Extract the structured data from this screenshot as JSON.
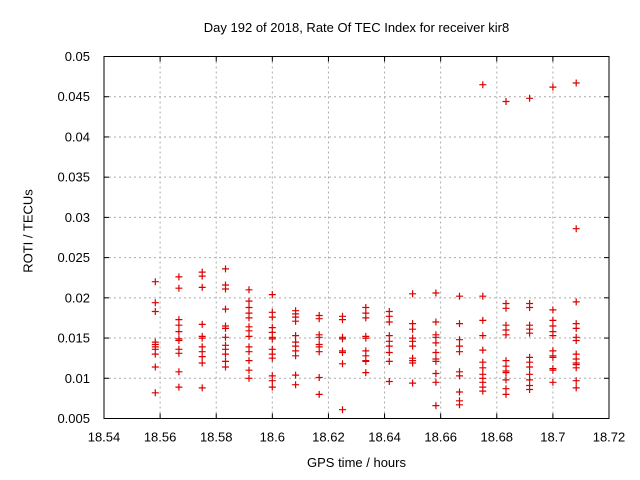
{
  "page": {
    "background": "#ffffff"
  },
  "chart_data": {
    "type": "scatter",
    "title": "Day 192 of 2018, Rate Of TEC Index for receiver kir8",
    "xlabel": "GPS time / hours",
    "ylabel": "ROTI / TECUs",
    "xlim": [
      18.54,
      18.72
    ],
    "ylim": [
      0.005,
      0.05
    ],
    "xticks": [
      18.54,
      18.56,
      18.58,
      18.6,
      18.62,
      18.64,
      18.66,
      18.68,
      18.7,
      18.72
    ],
    "xtick_labels": [
      "18.54",
      "18.56",
      "18.58",
      "18.6",
      "18.62",
      "18.64",
      "18.66",
      "18.68",
      "18.7",
      "18.72"
    ],
    "yticks": [
      0.005,
      0.01,
      0.015,
      0.02,
      0.025,
      0.03,
      0.035,
      0.04,
      0.045,
      0.05
    ],
    "ytick_labels": [
      "0.005",
      "0.01",
      "0.015",
      "0.02",
      "0.025",
      "0.03",
      "0.035",
      "0.04",
      "0.045",
      "0.05"
    ],
    "grid": true,
    "legend": false,
    "marker": "plus",
    "colors": {
      "marker": "#dd0000",
      "grid": "#aaaaaa",
      "axis": "#000000",
      "text": "#000000"
    },
    "series": [
      {
        "name": "roti",
        "points": [
          [
            18.5583,
            0.022
          ],
          [
            18.5583,
            0.0194
          ],
          [
            18.5583,
            0.0183
          ],
          [
            18.5583,
            0.0145
          ],
          [
            18.5583,
            0.0142
          ],
          [
            18.5583,
            0.0139
          ],
          [
            18.5583,
            0.0136
          ],
          [
            18.5583,
            0.013
          ],
          [
            18.5583,
            0.0114
          ],
          [
            18.5583,
            0.0082
          ],
          [
            18.5667,
            0.0226
          ],
          [
            18.5667,
            0.0212
          ],
          [
            18.5667,
            0.0173
          ],
          [
            18.5667,
            0.0166
          ],
          [
            18.5667,
            0.0158
          ],
          [
            18.5667,
            0.0149
          ],
          [
            18.5667,
            0.0147
          ],
          [
            18.5667,
            0.0136
          ],
          [
            18.5667,
            0.0131
          ],
          [
            18.5667,
            0.0108
          ],
          [
            18.5667,
            0.0089
          ],
          [
            18.575,
            0.0232
          ],
          [
            18.575,
            0.0227
          ],
          [
            18.575,
            0.0213
          ],
          [
            18.575,
            0.0167
          ],
          [
            18.575,
            0.0152
          ],
          [
            18.575,
            0.015
          ],
          [
            18.575,
            0.0139
          ],
          [
            18.575,
            0.0133
          ],
          [
            18.575,
            0.0127
          ],
          [
            18.575,
            0.0119
          ],
          [
            18.575,
            0.0088
          ],
          [
            18.5833,
            0.0236
          ],
          [
            18.5833,
            0.0216
          ],
          [
            18.5833,
            0.0211
          ],
          [
            18.5833,
            0.0186
          ],
          [
            18.5833,
            0.0165
          ],
          [
            18.5833,
            0.0162
          ],
          [
            18.5833,
            0.0151
          ],
          [
            18.5833,
            0.0141
          ],
          [
            18.5833,
            0.0136
          ],
          [
            18.5833,
            0.013
          ],
          [
            18.5833,
            0.0121
          ],
          [
            18.5833,
            0.0114
          ],
          [
            18.5917,
            0.021
          ],
          [
            18.5917,
            0.0196
          ],
          [
            18.5917,
            0.0188
          ],
          [
            18.5917,
            0.0181
          ],
          [
            18.5917,
            0.0175
          ],
          [
            18.5917,
            0.0164
          ],
          [
            18.5917,
            0.0159
          ],
          [
            18.5917,
            0.0152
          ],
          [
            18.5917,
            0.0139
          ],
          [
            18.5917,
            0.0133
          ],
          [
            18.5917,
            0.0122
          ],
          [
            18.5917,
            0.011
          ],
          [
            18.5917,
            0.01
          ],
          [
            18.6,
            0.0204
          ],
          [
            18.6,
            0.0182
          ],
          [
            18.6,
            0.0176
          ],
          [
            18.6,
            0.0163
          ],
          [
            18.6,
            0.0157
          ],
          [
            18.6,
            0.0151
          ],
          [
            18.6,
            0.0149
          ],
          [
            18.6,
            0.0136
          ],
          [
            18.6,
            0.013
          ],
          [
            18.6,
            0.0125
          ],
          [
            18.6,
            0.0103
          ],
          [
            18.6,
            0.0097
          ],
          [
            18.6,
            0.0089
          ],
          [
            18.6083,
            0.0184
          ],
          [
            18.6083,
            0.018
          ],
          [
            18.6083,
            0.0176
          ],
          [
            18.6083,
            0.0171
          ],
          [
            18.6083,
            0.0153
          ],
          [
            18.6083,
            0.0145
          ],
          [
            18.6083,
            0.014
          ],
          [
            18.6083,
            0.0134
          ],
          [
            18.6083,
            0.0128
          ],
          [
            18.6083,
            0.0104
          ],
          [
            18.6083,
            0.0092
          ],
          [
            18.6167,
            0.0178
          ],
          [
            18.6167,
            0.0174
          ],
          [
            18.6167,
            0.0154
          ],
          [
            18.6167,
            0.0151
          ],
          [
            18.6167,
            0.0142
          ],
          [
            18.6167,
            0.0139
          ],
          [
            18.6167,
            0.0133
          ],
          [
            18.6167,
            0.0101
          ],
          [
            18.6167,
            0.008
          ],
          [
            18.625,
            0.0177
          ],
          [
            18.625,
            0.0173
          ],
          [
            18.625,
            0.0151
          ],
          [
            18.625,
            0.0149
          ],
          [
            18.625,
            0.0134
          ],
          [
            18.625,
            0.0132
          ],
          [
            18.625,
            0.0118
          ],
          [
            18.625,
            0.0061
          ],
          [
            18.6333,
            0.0188
          ],
          [
            18.6333,
            0.0181
          ],
          [
            18.6333,
            0.0175
          ],
          [
            18.6333,
            0.0152
          ],
          [
            18.6333,
            0.015
          ],
          [
            18.6333,
            0.0134
          ],
          [
            18.6333,
            0.0128
          ],
          [
            18.6333,
            0.0122
          ],
          [
            18.6333,
            0.0121
          ],
          [
            18.6333,
            0.0107
          ],
          [
            18.6417,
            0.0183
          ],
          [
            18.6417,
            0.0177
          ],
          [
            18.6417,
            0.017
          ],
          [
            18.6417,
            0.0153
          ],
          [
            18.6417,
            0.0146
          ],
          [
            18.6417,
            0.014
          ],
          [
            18.6417,
            0.0132
          ],
          [
            18.6417,
            0.0121
          ],
          [
            18.6417,
            0.0096
          ],
          [
            18.65,
            0.0205
          ],
          [
            18.65,
            0.0168
          ],
          [
            18.65,
            0.0161
          ],
          [
            18.65,
            0.015
          ],
          [
            18.65,
            0.0146
          ],
          [
            18.65,
            0.014
          ],
          [
            18.65,
            0.0125
          ],
          [
            18.65,
            0.0122
          ],
          [
            18.65,
            0.0119
          ],
          [
            18.65,
            0.0094
          ],
          [
            18.6583,
            0.0206
          ],
          [
            18.6583,
            0.017
          ],
          [
            18.6583,
            0.0154
          ],
          [
            18.6583,
            0.0151
          ],
          [
            18.6583,
            0.0144
          ],
          [
            18.6583,
            0.0132
          ],
          [
            18.6583,
            0.0124
          ],
          [
            18.6583,
            0.0121
          ],
          [
            18.6583,
            0.0106
          ],
          [
            18.6583,
            0.0095
          ],
          [
            18.6583,
            0.0066
          ],
          [
            18.6667,
            0.0202
          ],
          [
            18.6667,
            0.0168
          ],
          [
            18.6667,
            0.0148
          ],
          [
            18.6667,
            0.014
          ],
          [
            18.6667,
            0.0133
          ],
          [
            18.6667,
            0.0108
          ],
          [
            18.6667,
            0.0103
          ],
          [
            18.6667,
            0.0083
          ],
          [
            18.6667,
            0.0072
          ],
          [
            18.6667,
            0.0067
          ],
          [
            18.675,
            0.0465
          ],
          [
            18.675,
            0.0202
          ],
          [
            18.675,
            0.0172
          ],
          [
            18.675,
            0.0153
          ],
          [
            18.675,
            0.0135
          ],
          [
            18.675,
            0.012
          ],
          [
            18.675,
            0.0113
          ],
          [
            18.675,
            0.0105
          ],
          [
            18.675,
            0.01
          ],
          [
            18.675,
            0.0095
          ],
          [
            18.675,
            0.0089
          ],
          [
            18.675,
            0.0084
          ],
          [
            18.6833,
            0.0444
          ],
          [
            18.6833,
            0.0193
          ],
          [
            18.6833,
            0.0187
          ],
          [
            18.6833,
            0.0166
          ],
          [
            18.6833,
            0.016
          ],
          [
            18.6833,
            0.0154
          ],
          [
            18.6833,
            0.0122
          ],
          [
            18.6833,
            0.0115
          ],
          [
            18.6833,
            0.0109
          ],
          [
            18.6833,
            0.0107
          ],
          [
            18.6833,
            0.0098
          ],
          [
            18.6833,
            0.0087
          ],
          [
            18.6833,
            0.008
          ],
          [
            18.6917,
            0.0448
          ],
          [
            18.6917,
            0.0193
          ],
          [
            18.6917,
            0.0188
          ],
          [
            18.6917,
            0.0166
          ],
          [
            18.6917,
            0.0161
          ],
          [
            18.6917,
            0.0156
          ],
          [
            18.6917,
            0.0126
          ],
          [
            18.6917,
            0.012
          ],
          [
            18.6917,
            0.0114
          ],
          [
            18.6917,
            0.0105
          ],
          [
            18.6917,
            0.0098
          ],
          [
            18.6917,
            0.0091
          ],
          [
            18.6917,
            0.0086
          ],
          [
            18.7,
            0.0462
          ],
          [
            18.7,
            0.0185
          ],
          [
            18.7,
            0.0172
          ],
          [
            18.7,
            0.0165
          ],
          [
            18.7,
            0.0158
          ],
          [
            18.7,
            0.0153
          ],
          [
            18.7,
            0.0134
          ],
          [
            18.7,
            0.0128
          ],
          [
            18.7,
            0.0126
          ],
          [
            18.7,
            0.0112
          ],
          [
            18.7,
            0.011
          ],
          [
            18.7,
            0.0095
          ],
          [
            18.7083,
            0.0467
          ],
          [
            18.7083,
            0.0286
          ],
          [
            18.7083,
            0.0195
          ],
          [
            18.7083,
            0.0168
          ],
          [
            18.7083,
            0.0162
          ],
          [
            18.7083,
            0.0151
          ],
          [
            18.7083,
            0.0147
          ],
          [
            18.7083,
            0.013
          ],
          [
            18.7083,
            0.0124
          ],
          [
            18.7083,
            0.0119
          ],
          [
            18.7083,
            0.0117
          ],
          [
            18.7083,
            0.0113
          ],
          [
            18.7083,
            0.0097
          ],
          [
            18.7083,
            0.0088
          ]
        ]
      }
    ]
  }
}
